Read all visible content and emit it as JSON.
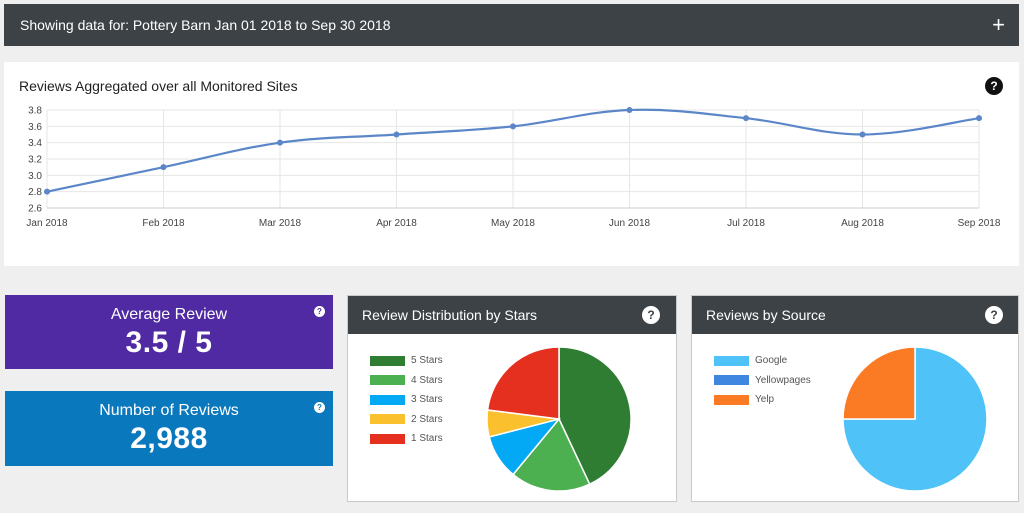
{
  "header": {
    "filter_text": "Showing data for: Pottery Barn Jan 01 2018 to Sep 30 2018",
    "expand_label": "+"
  },
  "line_card": {
    "title": "Reviews Aggregated over all Monitored Sites",
    "help": "?"
  },
  "stats": {
    "average": {
      "label": "Average Review",
      "value": "3.5 / 5",
      "help": "?",
      "color": "#4f2aa2"
    },
    "count": {
      "label": "Number of Reviews",
      "value": "2,988",
      "help": "?",
      "color": "#0a78bd"
    }
  },
  "stars_panel": {
    "title": "Review Distribution by Stars",
    "help": "?"
  },
  "source_panel": {
    "title": "Reviews by Source",
    "help": "?"
  },
  "chart_data": [
    {
      "type": "line",
      "title": "Reviews Aggregated over all Monitored Sites",
      "categories": [
        "Jan 2018",
        "Feb 2018",
        "Mar 2018",
        "Apr 2018",
        "May 2018",
        "Jun 2018",
        "Jul 2018",
        "Aug 2018",
        "Sep 2018"
      ],
      "values": [
        2.8,
        3.1,
        3.4,
        3.5,
        3.6,
        3.8,
        3.7,
        3.5,
        3.7
      ],
      "yticks": [
        "2.6",
        "2.8",
        "3.0",
        "3.2",
        "3.4",
        "3.6",
        "3.8"
      ],
      "ylim": [
        2.6,
        3.8
      ],
      "grid": true,
      "color": "#5b86c8"
    },
    {
      "type": "pie",
      "title": "Review Distribution by Stars",
      "labels": [
        "5 Stars",
        "4 Stars",
        "3 Stars",
        "2 Stars",
        "1 Stars"
      ],
      "values": [
        43,
        18,
        10,
        6,
        23
      ],
      "colors": [
        "#2e7d32",
        "#4caf50",
        "#03a9f4",
        "#fbc02d",
        "#e53020"
      ],
      "legend": "left"
    },
    {
      "type": "pie",
      "title": "Reviews by Source",
      "labels": [
        "Google",
        "Yellowpages",
        "Yelp"
      ],
      "values": [
        75,
        0,
        25
      ],
      "colors": [
        "#4fc3f7",
        "#3f86e0",
        "#fb7a24"
      ],
      "legend": "left"
    }
  ]
}
